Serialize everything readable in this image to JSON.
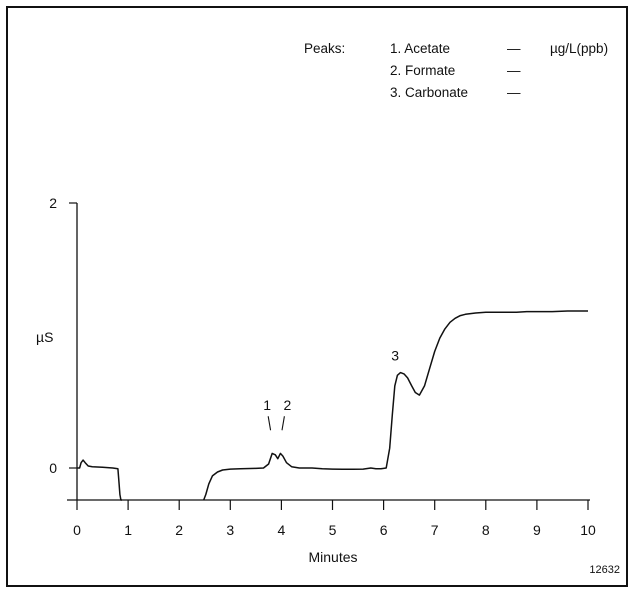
{
  "chart_data": {
    "type": "line",
    "title": "",
    "xlabel": "Minutes",
    "ylabel": "µS",
    "xlim": [
      0,
      10
    ],
    "ylim": [
      -0.22,
      2
    ],
    "x_ticks": [
      "0",
      "1",
      "2",
      "3",
      "4",
      "5",
      "6",
      "7",
      "8",
      "9",
      "10"
    ],
    "y_ticks": [
      {
        "value": 0,
        "label": "0"
      },
      {
        "value": 2,
        "label": "2"
      }
    ],
    "y_unit_label": "µS",
    "legend": {
      "heading": "Peaks:",
      "unit": "µg/L(ppb)",
      "items": [
        {
          "label": "1.  Acetate",
          "amount": "—"
        },
        {
          "label": "2.  Formate",
          "amount": "—"
        },
        {
          "label": "3.  Carbonate",
          "amount": "—"
        }
      ]
    },
    "peak_labels": [
      {
        "label": "1",
        "x": 3.8,
        "y": 0.27
      },
      {
        "label": "2",
        "x": 4.0,
        "y": 0.27
      }
    ],
    "peak_labels_plain": [
      {
        "label": "3",
        "x": 6.5,
        "y": 0.78
      }
    ],
    "series": [
      {
        "x": [
          0.0,
          0.05,
          0.08,
          0.12,
          0.16,
          0.22,
          0.3,
          0.5,
          0.7,
          0.8,
          0.82,
          0.84,
          0.86,
          0.88
        ],
        "y": [
          0.0,
          0.0,
          0.04,
          0.06,
          0.04,
          0.015,
          0.01,
          0.005,
          0.0,
          -0.005,
          -0.1,
          -0.2,
          -0.27,
          -0.3
        ]
      },
      {
        "x": [
          2.48,
          2.52,
          2.58,
          2.65,
          2.75,
          2.85,
          3.0,
          3.2,
          3.5,
          3.65,
          3.75,
          3.82,
          3.88,
          3.93,
          3.98,
          4.03,
          4.1,
          4.2,
          4.35,
          4.6,
          4.8,
          5.0,
          5.2,
          5.4,
          5.6,
          5.75,
          5.85,
          5.95,
          6.05,
          6.12,
          6.17,
          6.22,
          6.27,
          6.33,
          6.4,
          6.47,
          6.55,
          6.62,
          6.7,
          6.8,
          6.9,
          7.0,
          7.1,
          7.2,
          7.3,
          7.4,
          7.5,
          7.6,
          7.8,
          8.0,
          8.3,
          8.6,
          8.8,
          9.0,
          9.3,
          9.6,
          10.0
        ],
        "y": [
          -0.3,
          -0.2,
          -0.12,
          -0.06,
          -0.03,
          -0.015,
          -0.008,
          -0.005,
          -0.003,
          0.0,
          0.03,
          0.11,
          0.1,
          0.07,
          0.11,
          0.09,
          0.04,
          0.01,
          0.0,
          0.0,
          -0.005,
          -0.008,
          -0.01,
          -0.01,
          -0.008,
          0.0,
          -0.005,
          -0.005,
          0.0,
          0.15,
          0.4,
          0.62,
          0.7,
          0.72,
          0.71,
          0.68,
          0.62,
          0.57,
          0.55,
          0.62,
          0.75,
          0.88,
          0.98,
          1.05,
          1.1,
          1.13,
          1.15,
          1.16,
          1.17,
          1.175,
          1.175,
          1.175,
          1.18,
          1.18,
          1.18,
          1.185,
          1.185
        ]
      }
    ],
    "figure_id": "12632"
  }
}
